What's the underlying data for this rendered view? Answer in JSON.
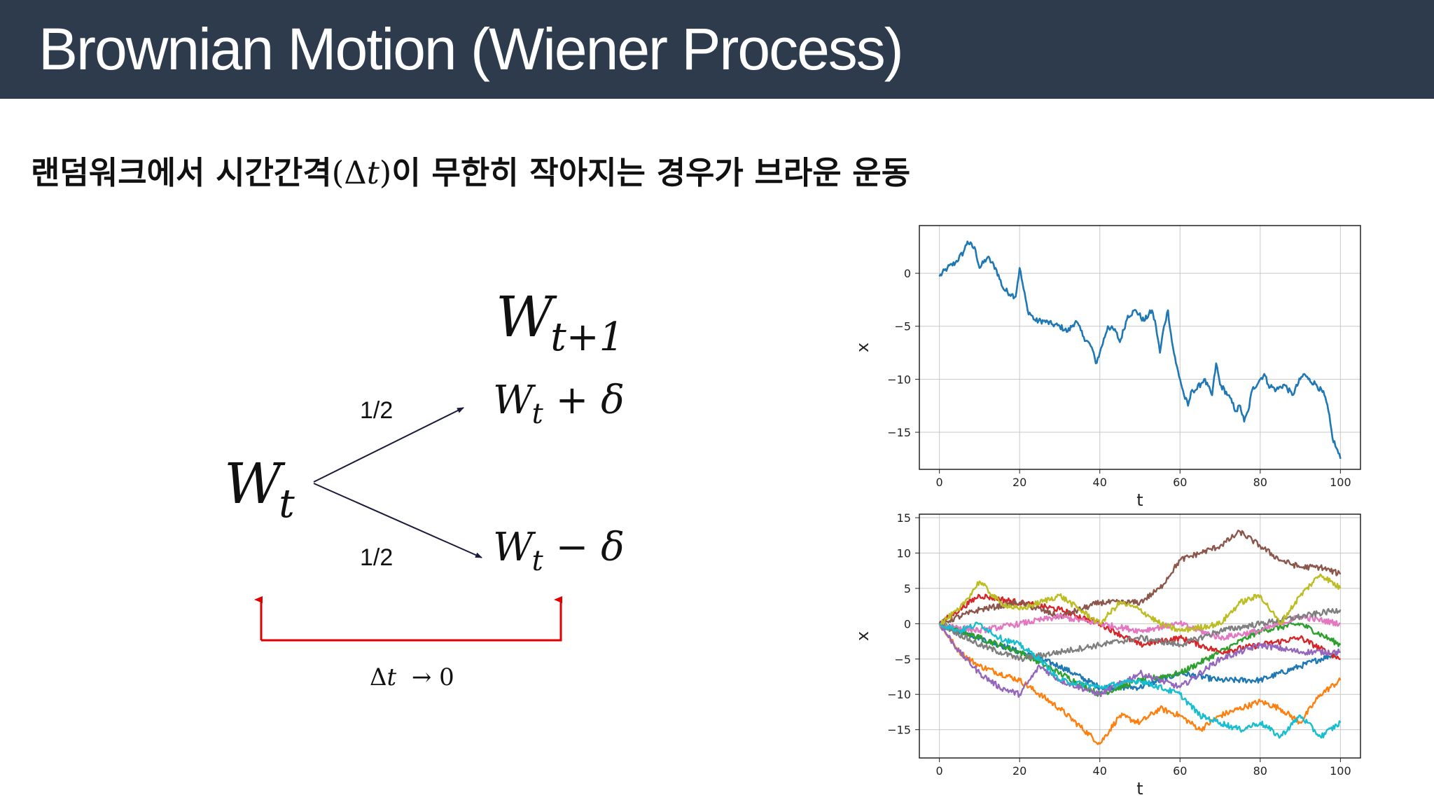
{
  "header": {
    "title": "Brownian Motion (Wiener Process)",
    "background": "#2d3b4d"
  },
  "subtitle": {
    "text_before": "랜덤워크에서 시간간격",
    "math": "(Δ𝑡)",
    "text_after": "이 무한히 작아지는 경우가 브라운 운동"
  },
  "diagram": {
    "start_W": "W",
    "start_sub": "t",
    "next_W": "W",
    "next_sub": "t+1",
    "up_W": "W",
    "up_sub": "t",
    "up_rest": " + δ",
    "down_W": "W",
    "down_sub": "t",
    "down_rest": " − δ",
    "prob_up": "1/2",
    "prob_down": "1/2",
    "limit_text": "Δ𝑡  → 0",
    "limit_color": "#e00000"
  },
  "chart_data": [
    {
      "type": "line",
      "xlabel": "t",
      "ylabel": "x",
      "xlim": [
        -5,
        105
      ],
      "ylim": [
        -18.5,
        4.5
      ],
      "xticks": [
        0,
        20,
        40,
        60,
        80,
        100
      ],
      "yticks": [
        0,
        -5,
        -10,
        -15
      ],
      "grid": true,
      "series": [
        {
          "color": "#1f77b4",
          "x": [
            0,
            2,
            4,
            6,
            7,
            9,
            10,
            12,
            14,
            16,
            18,
            19,
            20,
            21,
            22,
            24,
            26,
            28,
            30,
            32,
            34,
            36,
            38,
            39,
            40,
            42,
            44,
            45,
            47,
            49,
            51,
            53,
            54,
            55,
            56,
            57,
            58,
            59,
            60,
            61,
            62,
            63,
            64,
            66,
            68,
            69,
            70,
            72,
            74,
            75,
            76,
            77,
            78,
            80,
            81,
            82,
            84,
            86,
            88,
            90,
            91,
            92,
            94,
            96,
            97,
            98,
            99,
            100
          ],
          "y": [
            -0.3,
            0.5,
            1.0,
            2.0,
            3.0,
            2.2,
            0.5,
            1.5,
            0.5,
            -1.5,
            -2.0,
            -2.2,
            0.5,
            -1.5,
            -3.5,
            -4.5,
            -4.5,
            -4.8,
            -5.0,
            -5.5,
            -4.5,
            -6.0,
            -7.0,
            -8.5,
            -7.5,
            -5.0,
            -5.5,
            -6.5,
            -4.0,
            -3.5,
            -4.5,
            -3.5,
            -5.0,
            -7.5,
            -5.0,
            -3.5,
            -6.5,
            -8.5,
            -10.0,
            -11.5,
            -12.5,
            -11.0,
            -11.0,
            -10.0,
            -11.5,
            -8.5,
            -10.5,
            -11.5,
            -13.0,
            -12.5,
            -14.0,
            -13.0,
            -11.0,
            -10.0,
            -9.5,
            -10.5,
            -11.0,
            -10.5,
            -11.5,
            -10.0,
            -9.5,
            -10.0,
            -10.5,
            -11.5,
            -13.0,
            -15.5,
            -16.5,
            -17.5
          ]
        }
      ]
    },
    {
      "type": "line",
      "xlabel": "t",
      "ylabel": "x",
      "xlim": [
        -5,
        105
      ],
      "ylim": [
        -19,
        15.5
      ],
      "xticks": [
        0,
        20,
        40,
        60,
        80,
        100
      ],
      "yticks": [
        15,
        10,
        5,
        0,
        -5,
        -10,
        -15
      ],
      "grid": true,
      "series": [
        {
          "color": "#1f77b4",
          "x": [
            0,
            10,
            20,
            30,
            40,
            50,
            60,
            70,
            80,
            90,
            100
          ],
          "y": [
            0,
            -2,
            -4,
            -6,
            -9,
            -9,
            -7,
            -8,
            -8,
            -6,
            -4
          ]
        },
        {
          "color": "#ff7f0e",
          "x": [
            0,
            5,
            10,
            20,
            30,
            40,
            45,
            50,
            55,
            60,
            65,
            70,
            80,
            85,
            90,
            95,
            100
          ],
          "y": [
            0,
            -4,
            -6,
            -8,
            -12,
            -17,
            -13,
            -14,
            -12,
            -13,
            -15,
            -13,
            -11,
            -12,
            -14,
            -10,
            -8
          ]
        },
        {
          "color": "#2ca02c",
          "x": [
            0,
            10,
            20,
            30,
            40,
            50,
            60,
            70,
            80,
            90,
            100
          ],
          "y": [
            0,
            -2,
            -4,
            -7,
            -10,
            -8,
            -7,
            -4,
            -1,
            0,
            -3
          ]
        },
        {
          "color": "#d62728",
          "x": [
            0,
            10,
            20,
            30,
            40,
            50,
            60,
            70,
            80,
            90,
            100
          ],
          "y": [
            0,
            4,
            3,
            2,
            0,
            -3,
            -2,
            -4,
            -3,
            -2,
            -5
          ]
        },
        {
          "color": "#9467bd",
          "x": [
            0,
            5,
            10,
            15,
            20,
            25,
            30,
            40,
            50,
            60,
            70,
            80,
            90,
            100
          ],
          "y": [
            0,
            -4,
            -7,
            -9,
            -10,
            -6,
            -8,
            -10,
            -7,
            -9,
            -5,
            -3,
            -4,
            -4
          ]
        },
        {
          "color": "#8c564b",
          "x": [
            0,
            10,
            20,
            30,
            40,
            50,
            55,
            60,
            65,
            70,
            75,
            80,
            85,
            90,
            95,
            100
          ],
          "y": [
            0,
            2,
            3,
            1,
            3,
            3,
            5,
            9,
            10,
            11,
            13,
            11,
            9,
            8,
            8,
            7
          ]
        },
        {
          "color": "#e377c2",
          "x": [
            0,
            10,
            20,
            30,
            40,
            50,
            60,
            70,
            80,
            90,
            100
          ],
          "y": [
            0,
            -1,
            0,
            1,
            0,
            -1,
            0,
            -2,
            -1,
            1,
            0
          ]
        },
        {
          "color": "#7f7f7f",
          "x": [
            0,
            10,
            20,
            30,
            40,
            50,
            60,
            70,
            80,
            90,
            100
          ],
          "y": [
            0,
            -3,
            -5,
            -4,
            -3,
            -2,
            -3,
            -1,
            0,
            1,
            2
          ]
        },
        {
          "color": "#bcbd22",
          "x": [
            0,
            5,
            10,
            15,
            20,
            30,
            40,
            45,
            50,
            55,
            60,
            70,
            75,
            80,
            85,
            90,
            95,
            100
          ],
          "y": [
            0,
            2,
            6,
            3,
            2,
            4,
            0,
            3,
            2,
            0,
            -1,
            0,
            3,
            4,
            0,
            4,
            7,
            5
          ]
        },
        {
          "color": "#17becf",
          "x": [
            0,
            5,
            10,
            15,
            20,
            25,
            30,
            40,
            50,
            60,
            65,
            70,
            75,
            80,
            85,
            90,
            95,
            100
          ],
          "y": [
            0,
            -1,
            0,
            -2,
            -3,
            -5,
            -8,
            -9,
            -8,
            -10,
            -13,
            -14,
            -15,
            -14,
            -16,
            -13,
            -16,
            -14
          ]
        }
      ]
    }
  ]
}
